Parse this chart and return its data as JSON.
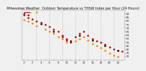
{
  "title": "Milwaukee Weather  Outdoor Temperature vs THSW Index per Hour (24 Hours)",
  "background_color": "#f0f0f0",
  "plot_background": "#f0f0f0",
  "grid_color": "#aaaaaa",
  "temp_color": "#cc0000",
  "thsw_color": "#ff8800",
  "dark_color": "#111111",
  "yellow_color": "#ffcc00",
  "ylim": [
    25,
    95
  ],
  "xlim": [
    -0.5,
    23.5
  ],
  "y_ticks": [
    30,
    35,
    40,
    45,
    50,
    55,
    60,
    65,
    70,
    75,
    80,
    85,
    90
  ],
  "x_tick_positions": [
    0,
    1,
    2,
    3,
    4,
    5,
    6,
    7,
    8,
    9,
    10,
    11,
    12,
    13,
    14,
    15,
    16,
    17,
    18,
    19,
    20,
    21,
    22,
    23
  ],
  "x_tick_labels": [
    "0",
    "",
    "2",
    "",
    "4",
    "",
    "6",
    "",
    "8",
    "",
    "10",
    "",
    "12",
    "",
    "14",
    "",
    "16",
    "",
    "18",
    "",
    "20",
    "",
    "22",
    ""
  ],
  "vlines": [
    3,
    6,
    9,
    12,
    15,
    18,
    21
  ],
  "temp_hours": [
    0,
    0,
    1,
    1,
    2,
    3,
    4,
    5,
    6,
    7,
    8,
    9,
    9,
    10,
    10,
    11,
    12,
    13,
    14,
    15,
    16,
    17,
    18,
    19,
    20,
    21,
    22,
    23
  ],
  "temp_values": [
    88,
    90,
    88,
    85,
    83,
    80,
    78,
    75,
    72,
    68,
    65,
    60,
    58,
    55,
    53,
    50,
    58,
    62,
    65,
    60,
    55,
    52,
    50,
    47,
    43,
    40,
    38,
    37
  ],
  "thsw_hours": [
    0,
    1,
    2,
    3,
    5,
    6,
    7,
    8,
    9,
    10,
    12,
    13,
    14,
    15,
    16,
    17,
    18,
    19,
    20,
    21,
    22
  ],
  "thsw_values": [
    82,
    80,
    77,
    73,
    68,
    65,
    62,
    58,
    55,
    50,
    52,
    55,
    58,
    53,
    48,
    45,
    42,
    38,
    35,
    32,
    30
  ],
  "black_hours": [
    4,
    7,
    11,
    13,
    16,
    19,
    22
  ],
  "black_values": [
    76,
    65,
    52,
    60,
    53,
    45,
    38
  ],
  "marker_size": 4,
  "dpi": 100,
  "title_fontsize": 3.5,
  "tick_fontsize": 3.0
}
